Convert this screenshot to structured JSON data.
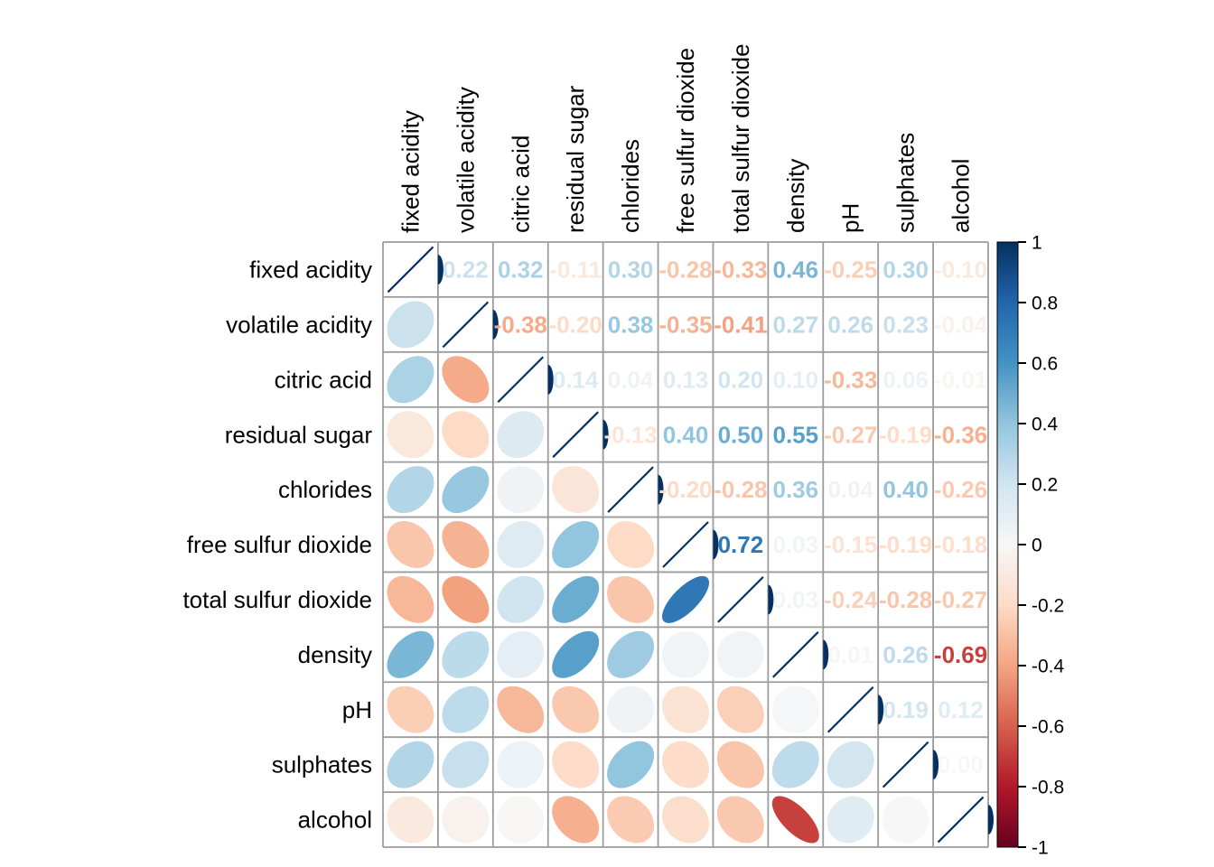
{
  "chart_data": {
    "type": "heatmap",
    "subtype": "correlation-matrix",
    "title": "",
    "lower_method": "ellipse",
    "upper_method": "number",
    "variables": [
      "fixed acidity",
      "volatile acidity",
      "citric acid",
      "residual sugar",
      "chlorides",
      "free sulfur dioxide",
      "total sulfur dioxide",
      "density",
      "pH",
      "sulphates",
      "alcohol"
    ],
    "matrix": [
      [
        1.0,
        0.22,
        0.32,
        -0.11,
        0.3,
        -0.28,
        -0.33,
        0.46,
        -0.25,
        0.3,
        -0.1
      ],
      [
        0.22,
        1.0,
        -0.38,
        -0.2,
        0.38,
        -0.35,
        -0.41,
        0.27,
        0.26,
        0.23,
        -0.04
      ],
      [
        0.32,
        -0.38,
        1.0,
        0.14,
        0.04,
        0.13,
        0.2,
        0.1,
        -0.33,
        0.06,
        -0.01
      ],
      [
        -0.11,
        -0.2,
        0.14,
        1.0,
        -0.13,
        0.4,
        0.5,
        0.55,
        -0.27,
        -0.19,
        -0.36
      ],
      [
        0.3,
        0.38,
        0.04,
        -0.13,
        1.0,
        -0.2,
        -0.28,
        0.36,
        0.04,
        0.4,
        -0.26
      ],
      [
        -0.28,
        -0.35,
        0.13,
        0.4,
        -0.2,
        1.0,
        0.72,
        0.03,
        -0.15,
        -0.19,
        -0.18
      ],
      [
        -0.33,
        -0.41,
        0.2,
        0.5,
        -0.28,
        0.72,
        1.0,
        0.03,
        -0.24,
        -0.28,
        -0.27
      ],
      [
        0.46,
        0.27,
        0.1,
        0.55,
        0.36,
        0.03,
        0.03,
        1.0,
        0.01,
        0.26,
        -0.69
      ],
      [
        -0.25,
        0.26,
        -0.33,
        -0.27,
        0.04,
        -0.15,
        -0.24,
        0.01,
        1.0,
        0.19,
        0.12
      ],
      [
        0.3,
        0.23,
        0.06,
        -0.19,
        0.4,
        -0.19,
        -0.28,
        0.26,
        0.19,
        1.0,
        0.0
      ],
      [
        -0.1,
        -0.04,
        -0.01,
        -0.36,
        -0.26,
        -0.18,
        -0.27,
        -0.69,
        0.12,
        0.0,
        1.0
      ]
    ],
    "colorbar": {
      "min": -1,
      "max": 1,
      "position": "right",
      "tick_labels": [
        "1",
        "0.8",
        "0.6",
        "0.4",
        "0.2",
        "0",
        "-0.2",
        "-0.4",
        "-0.6",
        "-0.8",
        "-1"
      ]
    },
    "palette_rdbu_neg_to_pos": [
      "#67001F",
      "#B2182B",
      "#D6604D",
      "#F4A582",
      "#FDDBC7",
      "#F7F7F7",
      "#D1E5F0",
      "#92C5DE",
      "#4393C3",
      "#2166AC",
      "#053061"
    ],
    "colors": {
      "diagonal": "#053061",
      "grid": "#9c9c9c",
      "label": "#000000",
      "colorbar_border": "#000000",
      "background": "#ffffff"
    },
    "layout_hints": {
      "grid": "on",
      "axis_labels_top_rotated": true,
      "axis_labels_left": true
    }
  }
}
